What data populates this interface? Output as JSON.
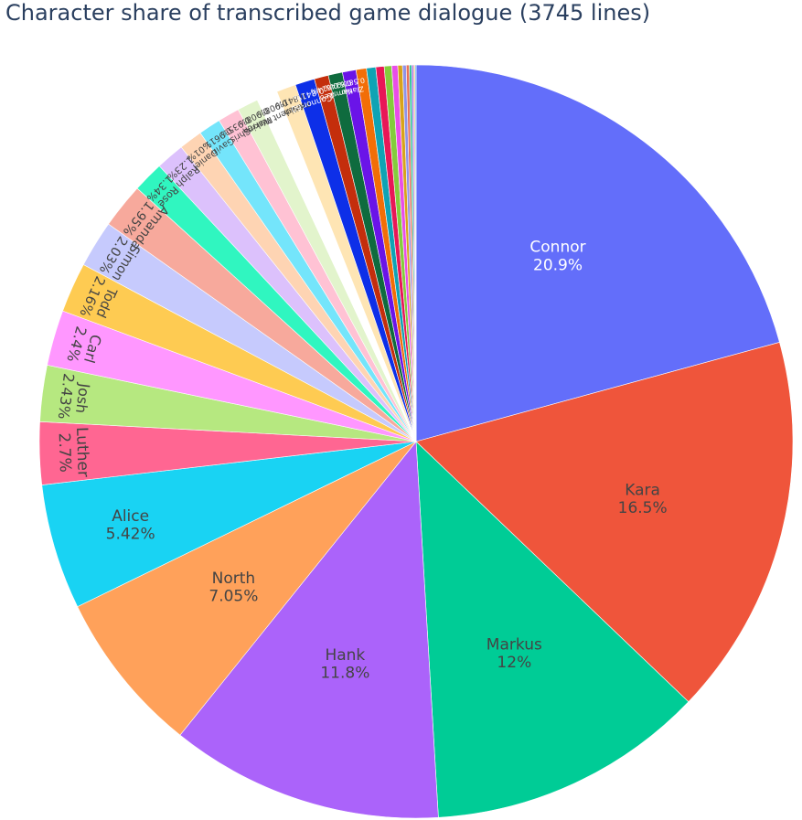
{
  "chart_data": {
    "type": "pie",
    "title": "Character share of transcribed game dialogue (3745 lines)",
    "total_lines": 3745,
    "labels_shown": "label+percent",
    "slices": [
      {
        "label": "Connor",
        "percent_text": "20.9%",
        "value": 20.9,
        "color": "#636efa",
        "text_color": "#ffffff"
      },
      {
        "label": "Kara",
        "percent_text": "16.5%",
        "value": 16.5,
        "color": "#ef553b",
        "text_color": "#444444"
      },
      {
        "label": "Markus",
        "percent_text": "12%",
        "value": 12.0,
        "color": "#00cc96",
        "text_color": "#444444"
      },
      {
        "label": "Hank",
        "percent_text": "11.8%",
        "value": 11.8,
        "color": "#ab63fa",
        "text_color": "#444444"
      },
      {
        "label": "North",
        "percent_text": "7.05%",
        "value": 7.05,
        "color": "#ffa15a",
        "text_color": "#444444"
      },
      {
        "label": "Alice",
        "percent_text": "5.42%",
        "value": 5.42,
        "color": "#19d3f3",
        "text_color": "#444444"
      },
      {
        "label": "Luther",
        "percent_text": "2.7%",
        "value": 2.7,
        "color": "#ff6692",
        "text_color": "#444444"
      },
      {
        "label": "Josh",
        "percent_text": "2.43%",
        "value": 2.43,
        "color": "#b6e880",
        "text_color": "#444444"
      },
      {
        "label": "Carl",
        "percent_text": "2.4%",
        "value": 2.4,
        "color": "#ff97ff",
        "text_color": "#444444"
      },
      {
        "label": "Todd",
        "percent_text": "2.16%",
        "value": 2.16,
        "color": "#fecb52",
        "text_color": "#444444"
      },
      {
        "label": "Simon",
        "percent_text": "2.03%",
        "value": 2.03,
        "color": "#c6cafd",
        "text_color": "#444444"
      },
      {
        "label": "Amanda",
        "percent_text": "1.95%",
        "value": 1.95,
        "color": "#f7a99c",
        "text_color": "#444444"
      },
      {
        "label": "Rose",
        "percent_text": "1.34%",
        "value": 1.34,
        "color": "#30f6c0",
        "text_color": "#444444"
      },
      {
        "label": "Ralph",
        "percent_text": "1.23%",
        "value": 1.23,
        "color": "#dcc1fc",
        "text_color": "#444444"
      },
      {
        "label": "Daniel",
        "percent_text": "1.01%",
        "value": 1.01,
        "color": "#fed4b3",
        "text_color": "#444444"
      },
      {
        "label": "Gavin",
        "percent_text": "0.961%",
        "value": 0.961,
        "color": "#74e5fb",
        "text_color": "#444444"
      },
      {
        "label": "Chris",
        "percent_text": "0.935%",
        "value": 0.935,
        "color": "#ffc2d4",
        "text_color": "#444444"
      },
      {
        "label": "Perkins",
        "percent_text": "0.908%",
        "value": 0.908,
        "color": "#e2f4cc",
        "text_color": "#444444"
      },
      {
        "label": "President Warren",
        "percent_text": "0.908%",
        "value": 0.908,
        "color": "#ffffff",
        "text_color": "#444444"
      },
      {
        "label": "Allen",
        "percent_text": "0.841%",
        "value": 0.841,
        "color": "#fee5b4",
        "text_color": "#444444"
      },
      {
        "label": "Connor-60",
        "percent_text": "0.841%",
        "value": 0.841,
        "color": "#0d2fe8",
        "text_color": "#ffffff"
      },
      {
        "label": "Leo",
        "percent_text": "0.614%",
        "value": 0.614,
        "color": "#c42e0c",
        "text_color": "#ffffff"
      },
      {
        "label": "Kamski",
        "percent_text": "0.614%",
        "value": 0.614,
        "color": "#0f6b3e",
        "text_color": "#ffffff"
      },
      {
        "label": "Zlatko",
        "percent_text": "0.587%",
        "value": 0.587,
        "color": "#6a14e8",
        "text_color": "#ffffff"
      },
      {
        "label": "",
        "percent_text": "",
        "value": 0.45,
        "color": "#f26e07",
        "text_color": "#ffffff"
      },
      {
        "label": "",
        "percent_text": "",
        "value": 0.4,
        "color": "#0fa3b4",
        "text_color": "#ffffff"
      },
      {
        "label": "",
        "percent_text": "",
        "value": 0.36,
        "color": "#e81757",
        "text_color": "#ffffff"
      },
      {
        "label": "",
        "percent_text": "",
        "value": 0.32,
        "color": "#84cc3c",
        "text_color": "#ffffff"
      },
      {
        "label": "",
        "percent_text": "",
        "value": 0.26,
        "color": "#e84ee8",
        "text_color": "#ffffff"
      },
      {
        "label": "",
        "percent_text": "",
        "value": 0.2,
        "color": "#d8a31a",
        "text_color": "#ffffff"
      },
      {
        "label": "",
        "percent_text": "",
        "value": 0.16,
        "color": "#8f93e8",
        "text_color": "#ffffff"
      },
      {
        "label": "",
        "percent_text": "",
        "value": 0.13,
        "color": "#e8725a",
        "text_color": "#ffffff"
      },
      {
        "label": "",
        "percent_text": "",
        "value": 0.1,
        "color": "#22c494",
        "text_color": "#ffffff"
      },
      {
        "label": "",
        "percent_text": "",
        "value": 0.08,
        "color": "#a66be8",
        "text_color": "#ffffff"
      },
      {
        "label": "",
        "percent_text": "",
        "value": 0.06,
        "color": "#f2a66e",
        "text_color": "#ffffff"
      },
      {
        "label": "",
        "percent_text": "",
        "value": 0.05,
        "color": "#5cc8e6",
        "text_color": "#ffffff"
      }
    ]
  }
}
